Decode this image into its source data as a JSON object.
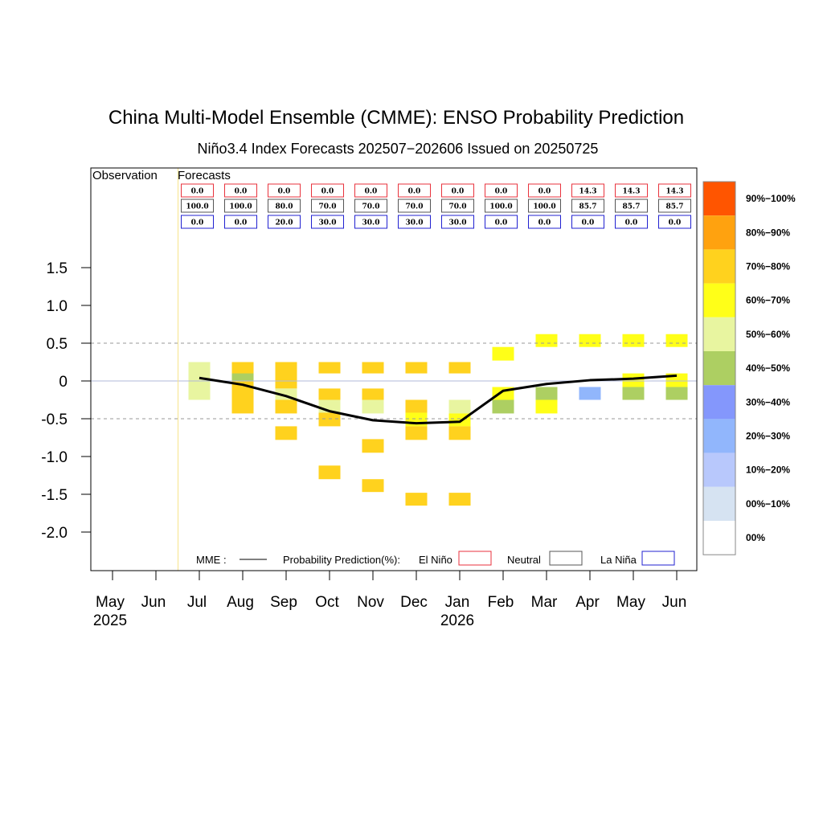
{
  "chart_data": {
    "type": "heatmap",
    "title": "China Multi-Model Ensemble (CMME): ENSO Probability Prediction",
    "subtitle": "Niño3.4 Index Forecasts 202507−202606 Issued on 20250725",
    "observation_label": "Observation",
    "forecasts_label": "Forecasts",
    "months": [
      "May",
      "Jun",
      "Jul",
      "Aug",
      "Sep",
      "Oct",
      "Nov",
      "Dec",
      "Jan",
      "Feb",
      "Mar",
      "Apr",
      "May",
      "Jun"
    ],
    "year_labels": [
      {
        "month_index": 0,
        "text": "2025"
      },
      {
        "month_index": 8,
        "text": "2026"
      }
    ],
    "y_ticks": [
      "1.5",
      "1.0",
      "0.5",
      "0",
      "-0.5",
      "-1.0",
      "-1.5",
      "-2.0"
    ],
    "y_tick_values": [
      1.5,
      1.0,
      0.5,
      0,
      -0.5,
      -1.0,
      -1.5,
      -2.0
    ],
    "ylim": [
      -2.5,
      2.5
    ],
    "dashed_lines": [
      0.5,
      -0.5
    ],
    "probabilities": {
      "el_nino": [
        "0.0",
        "0.0",
        "0.0",
        "0.0",
        "0.0",
        "0.0",
        "0.0",
        "0.0",
        "0.0",
        "14.3",
        "14.3",
        "14.3"
      ],
      "neutral": [
        "100.0",
        "100.0",
        "80.0",
        "70.0",
        "70.0",
        "70.0",
        "70.0",
        "100.0",
        "100.0",
        "85.7",
        "85.7",
        "85.7"
      ],
      "la_nina": [
        "0.0",
        "0.0",
        "20.0",
        "30.0",
        "30.0",
        "30.0",
        "30.0",
        "0.0",
        "0.0",
        "0.0",
        "0.0",
        "0.0"
      ]
    },
    "forecast_month_start_index": 2,
    "mme_series": {
      "month_indices": [
        2,
        3,
        4,
        5,
        6,
        7,
        8,
        9,
        10,
        11,
        12,
        13
      ],
      "values": [
        0.04,
        -0.05,
        -0.2,
        -0.4,
        -0.52,
        -0.56,
        -0.54,
        -0.13,
        -0.04,
        0.01,
        0.03,
        0.07
      ]
    },
    "cells": [
      {
        "m": 2,
        "lo": -0.25,
        "hi": 0.25,
        "bin": 4
      },
      {
        "m": 3,
        "lo": 0.0,
        "hi": 0.25,
        "bin": 2
      },
      {
        "m": 3,
        "lo": -0.25,
        "hi": 0.0,
        "bin": 2
      },
      {
        "m": 3,
        "lo": 0.0,
        "hi": 0.1,
        "bin": 5
      },
      {
        "m": 3,
        "lo": -0.25,
        "hi": -0.05,
        "bin": 2
      },
      {
        "m": 3,
        "lo": -0.43,
        "hi": -0.25,
        "bin": 2
      },
      {
        "m": 4,
        "lo": 0.0,
        "hi": 0.25,
        "bin": 2
      },
      {
        "m": 4,
        "lo": -0.1,
        "hi": 0.0,
        "bin": 2
      },
      {
        "m": 4,
        "lo": -0.25,
        "hi": -0.1,
        "bin": 4
      },
      {
        "m": 4,
        "lo": -0.43,
        "hi": -0.25,
        "bin": 2
      },
      {
        "m": 4,
        "lo": -0.78,
        "hi": -0.6,
        "bin": 2
      },
      {
        "m": 5,
        "lo": 0.1,
        "hi": 0.25,
        "bin": 2
      },
      {
        "m": 5,
        "lo": -0.25,
        "hi": -0.1,
        "bin": 2
      },
      {
        "m": 5,
        "lo": -0.42,
        "hi": -0.25,
        "bin": 4
      },
      {
        "m": 5,
        "lo": -0.6,
        "hi": -0.42,
        "bin": 2
      },
      {
        "m": 5,
        "lo": -1.3,
        "hi": -1.12,
        "bin": 2
      },
      {
        "m": 6,
        "lo": 0.1,
        "hi": 0.25,
        "bin": 2
      },
      {
        "m": 6,
        "lo": -0.25,
        "hi": -0.1,
        "bin": 2
      },
      {
        "m": 6,
        "lo": -0.43,
        "hi": -0.25,
        "bin": 4
      },
      {
        "m": 6,
        "lo": -0.95,
        "hi": -0.77,
        "bin": 2
      },
      {
        "m": 6,
        "lo": -1.47,
        "hi": -1.3,
        "bin": 2
      },
      {
        "m": 7,
        "lo": 0.1,
        "hi": 0.25,
        "bin": 2
      },
      {
        "m": 7,
        "lo": -0.42,
        "hi": -0.25,
        "bin": 2
      },
      {
        "m": 7,
        "lo": -0.6,
        "hi": -0.42,
        "bin": 3
      },
      {
        "m": 7,
        "lo": -0.78,
        "hi": -0.6,
        "bin": 2
      },
      {
        "m": 7,
        "lo": -1.65,
        "hi": -1.48,
        "bin": 2
      },
      {
        "m": 8,
        "lo": 0.1,
        "hi": 0.25,
        "bin": 2
      },
      {
        "m": 8,
        "lo": -0.43,
        "hi": -0.25,
        "bin": 4
      },
      {
        "m": 8,
        "lo": -0.6,
        "hi": -0.43,
        "bin": 3
      },
      {
        "m": 8,
        "lo": -0.78,
        "hi": -0.6,
        "bin": 2
      },
      {
        "m": 8,
        "lo": -1.65,
        "hi": -1.48,
        "bin": 2
      },
      {
        "m": 9,
        "lo": 0.27,
        "hi": 0.45,
        "bin": 3
      },
      {
        "m": 9,
        "lo": -0.25,
        "hi": -0.08,
        "bin": 3
      },
      {
        "m": 9,
        "lo": -0.43,
        "hi": -0.25,
        "bin": 5
      },
      {
        "m": 10,
        "lo": 0.45,
        "hi": 0.62,
        "bin": 3
      },
      {
        "m": 10,
        "lo": -0.25,
        "hi": -0.08,
        "bin": 5
      },
      {
        "m": 10,
        "lo": -0.43,
        "hi": -0.25,
        "bin": 3
      },
      {
        "m": 11,
        "lo": 0.45,
        "hi": 0.62,
        "bin": 3
      },
      {
        "m": 11,
        "lo": -0.25,
        "hi": -0.08,
        "bin": 7
      },
      {
        "m": 12,
        "lo": 0.45,
        "hi": 0.62,
        "bin": 3
      },
      {
        "m": 12,
        "lo": -0.08,
        "hi": 0.1,
        "bin": 3
      },
      {
        "m": 12,
        "lo": -0.25,
        "hi": -0.08,
        "bin": 5
      },
      {
        "m": 13,
        "lo": 0.45,
        "hi": 0.62,
        "bin": 3
      },
      {
        "m": 13,
        "lo": -0.08,
        "hi": 0.1,
        "bin": 3
      },
      {
        "m": 13,
        "lo": -0.25,
        "hi": -0.08,
        "bin": 5
      }
    ],
    "colorbar": {
      "labels": [
        "90%−100%",
        "80%−90%",
        "70%−80%",
        "60%−70%",
        "50%−60%",
        "40%−50%",
        "30%−40%",
        "20%−30%",
        "10%−20%",
        "00%−10%",
        "00%"
      ],
      "colors": [
        "#ff5500",
        "#ffa20f",
        "#ffd21e",
        "#ffff18",
        "#e8f5a0",
        "#adcf62",
        "#8497fc",
        "#91b6fc",
        "#b8c8fc",
        "#d6e3f2",
        "#ffffff"
      ]
    },
    "legend": {
      "mme_label": "MME :",
      "prob_label": "Probability Prediction(%):",
      "el_nino": "El Niño",
      "neutral": "Neutral",
      "la_nina": "La Niña",
      "el_nino_color": "#e8323c",
      "neutral_color": "#555555",
      "la_nina_color": "#2020d0"
    },
    "grid": false,
    "legend_position": "bottom",
    "line_color": "#000000",
    "separator_color": "#f7e48b",
    "zero_line_color": "#b0b8d8",
    "dashed_line_color": "#999999"
  }
}
